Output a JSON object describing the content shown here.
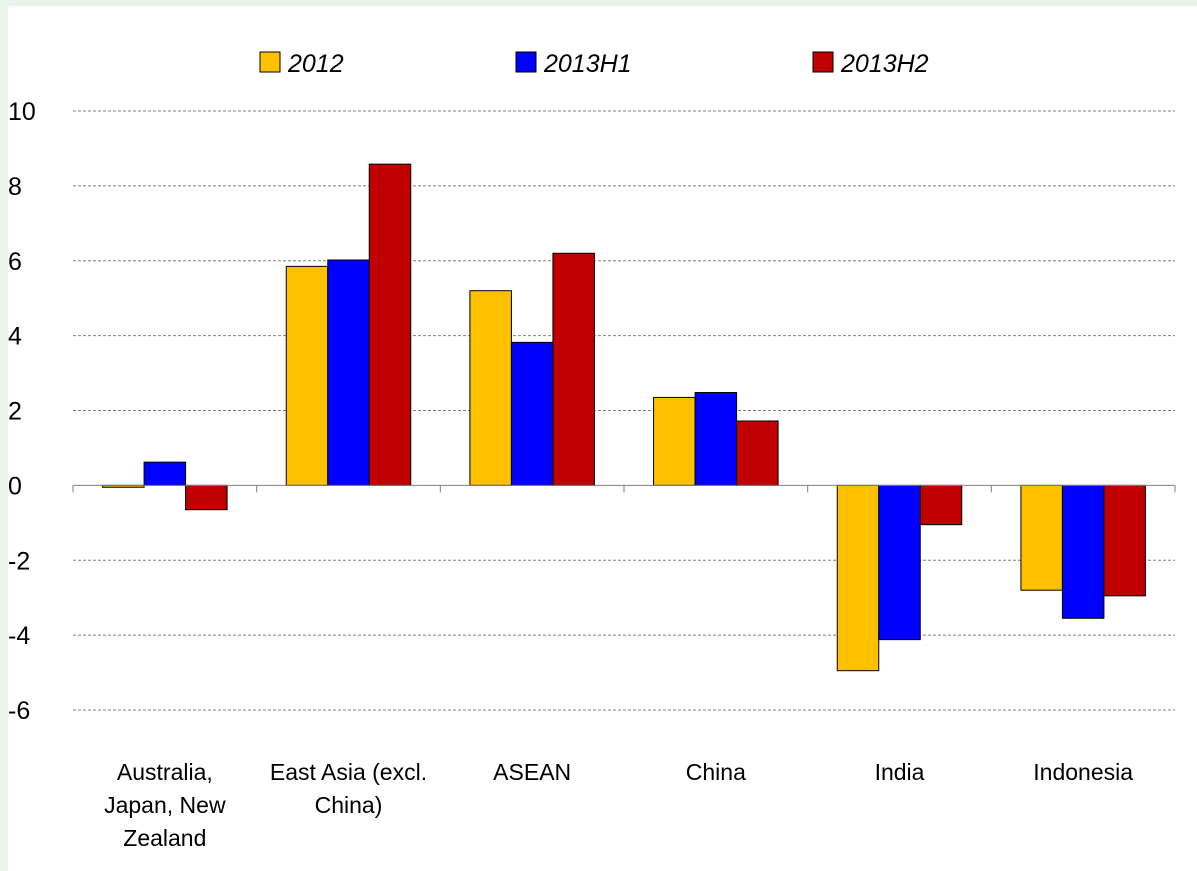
{
  "chart_data": {
    "type": "bar",
    "title": "",
    "xlabel": "",
    "ylabel": "",
    "categories": [
      [
        "Australia,",
        "Japan, New",
        "Zealand"
      ],
      [
        "East Asia (excl.",
        "China)"
      ],
      [
        "ASEAN"
      ],
      [
        "China"
      ],
      [
        "India"
      ],
      [
        "Indonesia"
      ]
    ],
    "series": [
      {
        "name": "2012",
        "color": "#ffc000",
        "values": [
          -0.05,
          5.85,
          5.2,
          2.35,
          -4.95,
          -2.8
        ]
      },
      {
        "name": "2013H1",
        "color": "#0000ff",
        "values": [
          0.62,
          6.02,
          3.82,
          2.48,
          -4.12,
          -3.55
        ]
      },
      {
        "name": "2013H2",
        "color": "#c00000",
        "values": [
          -0.65,
          8.58,
          6.2,
          1.72,
          -1.05,
          -2.95
        ]
      }
    ],
    "ylim": [
      -6,
      10
    ],
    "yticks": [
      -6,
      -4,
      -2,
      0,
      2,
      4,
      6,
      8,
      10
    ],
    "grid": "horizontal-dashed",
    "legend_position": "top"
  }
}
